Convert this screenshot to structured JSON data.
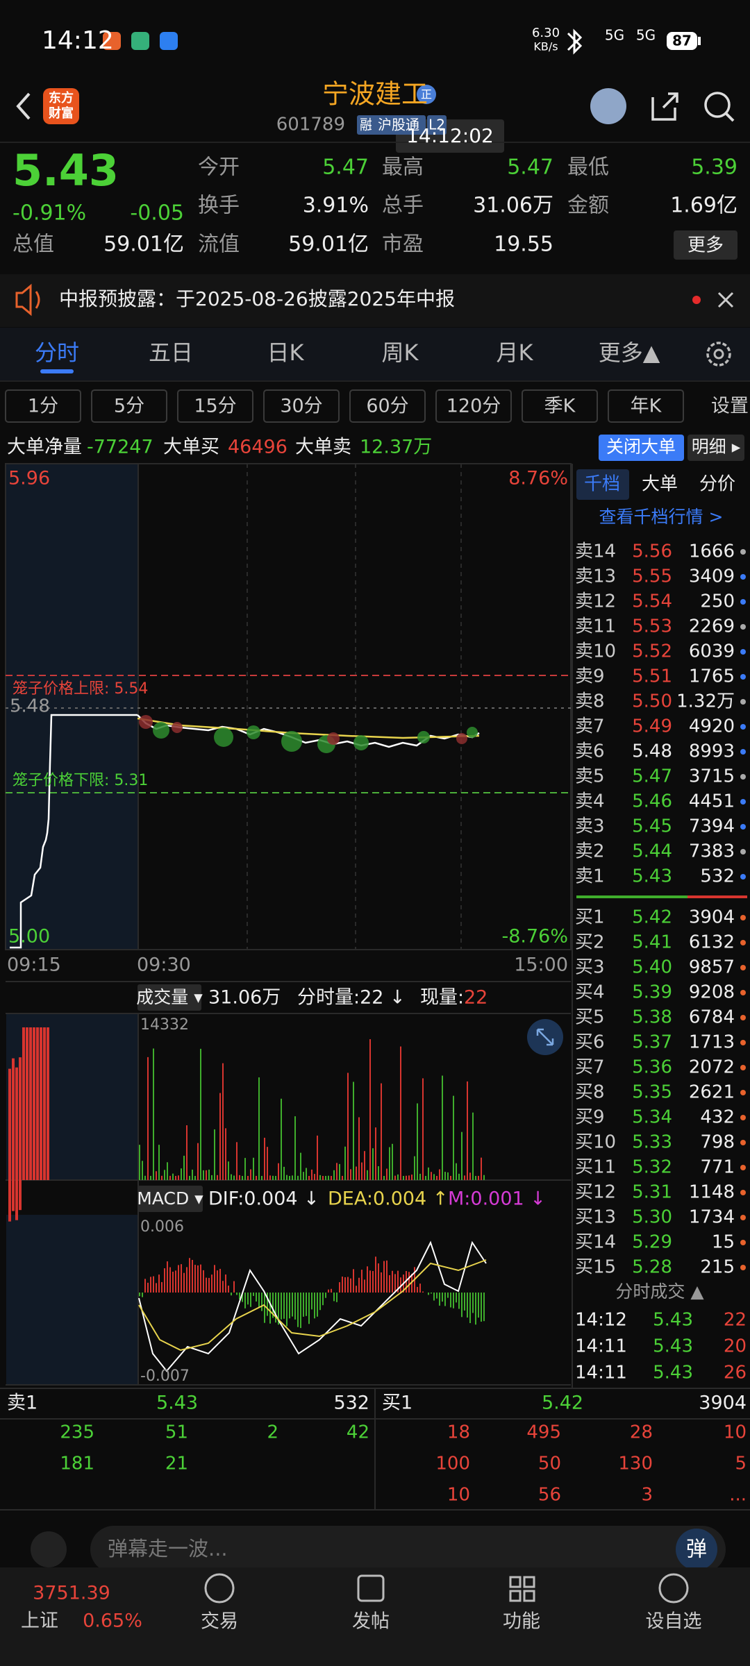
{
  "status_bar": {
    "time": "14:12",
    "net_speed": "6.30",
    "net_unit": "KB/s",
    "signal_1": "5G",
    "signal_2": "5G",
    "battery": "87"
  },
  "header": {
    "logo_line1": "东方",
    "logo_line2": "财富",
    "stock_name": "宁波建工",
    "badge": "正",
    "code": "601789",
    "tags": [
      "融",
      "沪股通",
      "L2"
    ],
    "tooltip": "14:12:02"
  },
  "quote": {
    "price": "5.43",
    "change_pct": "-0.91%",
    "change": "-0.05",
    "rows": [
      [
        {
          "label": "今开",
          "value": "5.47"
        },
        {
          "label": "最高",
          "value": "5.47"
        },
        {
          "label": "最低",
          "value": "5.39"
        }
      ],
      [
        {
          "label": "换手",
          "value": "3.91%"
        },
        {
          "label": "总手",
          "value": "31.06万"
        },
        {
          "label": "金额",
          "value": "1.69亿"
        }
      ],
      [
        {
          "label": "总值",
          "value": "59.01亿"
        },
        {
          "label": "流值",
          "value": "59.01亿"
        },
        {
          "label": "市盈",
          "value": "19.55"
        }
      ]
    ],
    "more": "更多"
  },
  "notice": {
    "text": "中报预披露：于2025-08-26披露2025年中报"
  },
  "tabs": [
    "分时",
    "五日",
    "日K",
    "周K",
    "月K",
    "更多▲"
  ],
  "periods": [
    "1分",
    "5分",
    "15分",
    "30分",
    "60分",
    "120分",
    "季K",
    "年K"
  ],
  "settings": "设置",
  "big_order": {
    "net_label": "大单净量",
    "net_value": "-77247",
    "buy_label": "大单买",
    "buy_value": "46496",
    "sell_label": "大单卖",
    "sell_value": "12.37万",
    "close_button": "关闭大单",
    "detail_button": "明细 ▸"
  },
  "chart": {
    "top_price": "5.96",
    "top_pct": "8.76%",
    "upper_limit": "笼子价格上限: 5.54",
    "pre_close": "5.48",
    "lower_limit": "笼子价格下限: 5.31",
    "bottom_price": "5.00",
    "bottom_pct": "-8.76%",
    "times": [
      "09:15",
      "09:30",
      "15:00"
    ]
  },
  "volume": {
    "label": "成交量 ▾",
    "total": "31.06万",
    "tick_label": "分时量:22 ↓",
    "now_label": "现量:",
    "now_value": "22",
    "max": "14332"
  },
  "macd": {
    "label": "MACD ▾",
    "dif": "DIF:0.004 ↓",
    "dea": "DEA:0.004 ↑",
    "m": "M:0.001 ↓",
    "top": "0.006",
    "bottom": "-0.007"
  },
  "order_book": {
    "tabs": [
      "千档",
      "大单",
      "分价"
    ],
    "link": "查看千档行情 >",
    "asks": [
      [
        "卖14",
        "5.56",
        "1666"
      ],
      [
        "卖13",
        "5.55",
        "3409"
      ],
      [
        "卖12",
        "5.54",
        "250"
      ],
      [
        "卖11",
        "5.53",
        "2269"
      ],
      [
        "卖10",
        "5.52",
        "6039"
      ],
      [
        "卖9",
        "5.51",
        "1765"
      ],
      [
        "卖8",
        "5.50",
        "1.32万"
      ],
      [
        "卖7",
        "5.49",
        "4920"
      ],
      [
        "卖6",
        "5.48",
        "8993"
      ],
      [
        "卖5",
        "5.47",
        "3715"
      ],
      [
        "卖4",
        "5.46",
        "4451"
      ],
      [
        "卖3",
        "5.45",
        "7394"
      ],
      [
        "卖2",
        "5.44",
        "7383"
      ],
      [
        "卖1",
        "5.43",
        "532"
      ]
    ],
    "bids": [
      [
        "买1",
        "5.42",
        "3904"
      ],
      [
        "买2",
        "5.41",
        "6132"
      ],
      [
        "买3",
        "5.40",
        "9857"
      ],
      [
        "买4",
        "5.39",
        "9208"
      ],
      [
        "买5",
        "5.38",
        "6784"
      ],
      [
        "买6",
        "5.37",
        "1713"
      ],
      [
        "买7",
        "5.36",
        "2072"
      ],
      [
        "买8",
        "5.35",
        "2621"
      ],
      [
        "买9",
        "5.34",
        "432"
      ],
      [
        "买10",
        "5.33",
        "798"
      ],
      [
        "买11",
        "5.32",
        "771"
      ],
      [
        "买12",
        "5.31",
        "1148"
      ],
      [
        "买13",
        "5.30",
        "1734"
      ],
      [
        "买14",
        "5.29",
        "15"
      ],
      [
        "买15",
        "5.28",
        "215"
      ]
    ],
    "trades_title": "分时成交 ▲",
    "trades": [
      [
        "14:12",
        "5.43",
        "22"
      ],
      [
        "14:11",
        "5.43",
        "20"
      ],
      [
        "14:11",
        "5.43",
        "26"
      ]
    ]
  },
  "depth": {
    "ask_label": "卖1",
    "ask_price": "5.43",
    "ask_vol": "532",
    "bid_label": "买1",
    "bid_price": "5.42",
    "bid_vol": "3904",
    "ask_rows": [
      [
        "235",
        "51",
        "2",
        "42"
      ],
      [
        "181",
        "21"
      ]
    ],
    "bid_rows": [
      [
        "18",
        "495",
        "28",
        "10"
      ],
      [
        "100",
        "50",
        "130",
        "5"
      ],
      [
        "10",
        "56",
        "3",
        "..."
      ]
    ]
  },
  "comment": {
    "placeholder": "弹幕走一波...",
    "button": "弹"
  },
  "nav": {
    "index_value": "3751.39",
    "index_name": "上证",
    "index_change": "0.65%",
    "items": [
      "交易",
      "发帖",
      "功能",
      "设自选"
    ]
  }
}
